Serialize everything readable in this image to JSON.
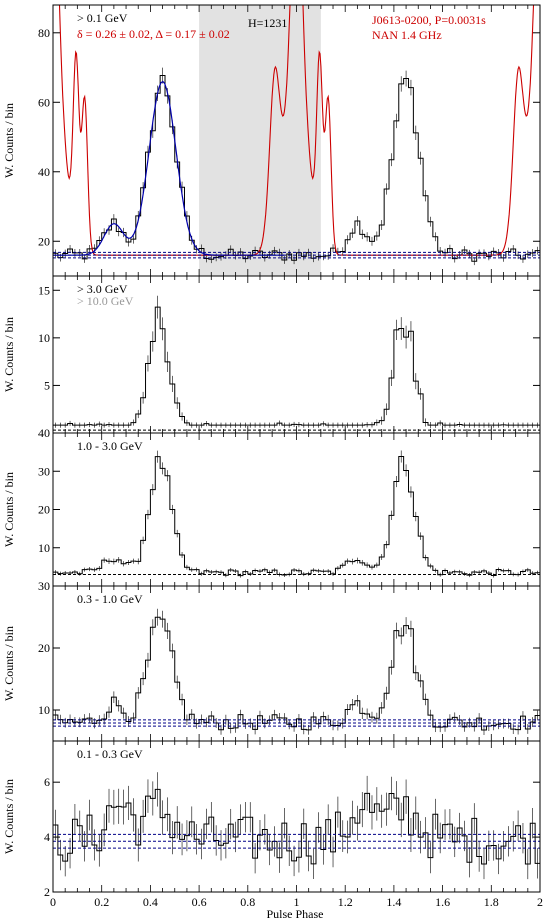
{
  "figure": {
    "x_label": "Pulse Phase",
    "x_range": [
      0,
      2
    ],
    "x_ticks": [
      "0",
      "0.2",
      "0.4",
      "0.6",
      "0.8",
      "1",
      "1.2",
      "1.4",
      "1.6",
      "1.8",
      "2"
    ],
    "colors": {
      "histogram": "#000000",
      "radio": "#cc0000",
      "fit": "#0000aa",
      "background": "#000088",
      "shade": "#e2e2e2",
      "secondary": "#999999"
    }
  },
  "chart_data": [
    {
      "type": "line",
      "name": "panel-1",
      "ylabel": "W. Counts / bin",
      "ylim": [
        10,
        88
      ],
      "yticks": [
        20,
        40,
        60,
        80
      ],
      "labels": {
        "energy": "> 0.1 GeV",
        "htest": "H=1231",
        "pulsar": "J0613-0200, P=0.0031s",
        "radio": "NAN 1.4 GHz",
        "fit_params": "δ = 0.26 ± 0.02, Δ = 0.17 ± 0.02"
      },
      "shaded_phase": [
        0.6,
        1.1
      ],
      "background_levels": [
        15.2,
        16.0,
        16.8
      ],
      "peak": {
        "center": 0.45,
        "width": 0.055,
        "height": 50
      },
      "base_level": 16,
      "pulse_profile": [
        {
          "phase": 0.25,
          "width": 0.04,
          "height": 9
        },
        {
          "phase": 0.45,
          "width": 0.055,
          "height": 50
        }
      ],
      "radio_profile": {
        "base": 16,
        "components": [
          {
            "phase": 0.0,
            "width": 0.045,
            "height": 56
          },
          {
            "phase": 0.13,
            "width": 0.012,
            "height": 44
          },
          {
            "phase": 0.91,
            "width": 0.018,
            "height": 23
          },
          {
            "phase": 1.0,
            "width": 0.02,
            "height": 61
          },
          {
            "phase": 1.095,
            "width": 0.012,
            "height": 52
          },
          {
            "phase": 1.91,
            "width": 0.025,
            "height": 23
          }
        ]
      }
    },
    {
      "type": "line",
      "name": "panel-2",
      "ylabel": "W. Counts / bin",
      "ylim": [
        0,
        16.5
      ],
      "yticks": [
        5,
        10,
        15
      ],
      "labels": {
        "energy": "> 3.0 GeV",
        "energy_secondary": "> 10.0 GeV"
      },
      "background_levels": [
        0.3
      ],
      "base_level": 0.6,
      "pulse_profile": [
        {
          "phase": 0.44,
          "width": 0.04,
          "height": 11.5
        }
      ]
    },
    {
      "type": "line",
      "name": "panel-3",
      "ylabel": "W. Counts / bin",
      "ylim": [
        0,
        40
      ],
      "yticks": [
        10,
        20,
        30,
        40
      ],
      "labels": {
        "energy": "1.0 - 3.0 GeV"
      },
      "background_levels": [
        3.0
      ],
      "base_level": 3.5,
      "pulse_profile": [
        {
          "phase": 0.25,
          "width": 0.04,
          "height": 4
        },
        {
          "phase": 0.44,
          "width": 0.045,
          "height": 29
        }
      ]
    },
    {
      "type": "line",
      "name": "panel-4",
      "ylabel": "W. Counts / bin",
      "ylim": [
        5,
        30
      ],
      "yticks": [
        10,
        20,
        30
      ],
      "labels": {
        "energy": "0.3 - 1.0 GeV"
      },
      "background_levels": [
        7.4,
        7.9,
        8.4
      ],
      "base_level": 8,
      "pulse_profile": [
        {
          "phase": 0.25,
          "width": 0.04,
          "height": 3
        },
        {
          "phase": 0.44,
          "width": 0.05,
          "height": 16
        }
      ]
    },
    {
      "type": "line",
      "name": "panel-5",
      "ylabel": "W. Counts / bin",
      "ylim": [
        2,
        7.5
      ],
      "yticks": [
        2,
        4,
        6
      ],
      "labels": {
        "energy": "0.1 - 0.3 GeV"
      },
      "background_levels": [
        3.6,
        3.85,
        4.1
      ],
      "base_level": 3.9,
      "pulse_profile": [
        {
          "phase": 0.27,
          "width": 0.05,
          "height": 1.3
        },
        {
          "phase": 0.44,
          "width": 0.06,
          "height": 1.1
        }
      ]
    }
  ]
}
